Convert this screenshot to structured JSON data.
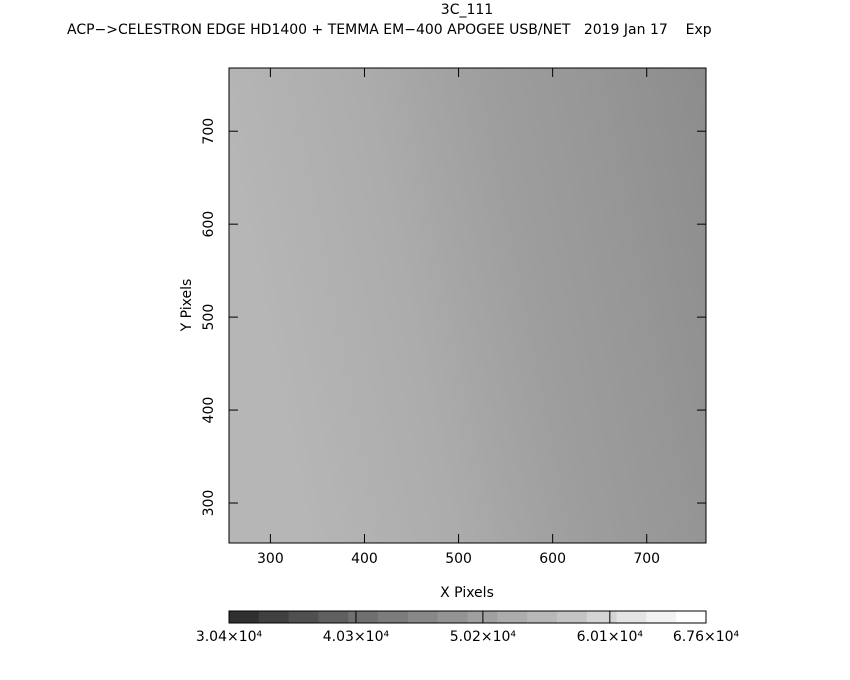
{
  "chart_data": {
    "type": "image",
    "title": "3C_111",
    "subtitle": "ACP−>CELESTRON EDGE HD1400 + TEMMA EM−400 APOGEE USB/NET   2019 Jan 17    Exp",
    "xlabel": "X Pixels",
    "ylabel": "Y Pixels",
    "xlim": [
      256,
      763
    ],
    "xticks": [
      300,
      400,
      500,
      600,
      700
    ],
    "ylim": [
      257,
      768
    ],
    "yticks": [
      300,
      400,
      500,
      600,
      700
    ],
    "colorbar": {
      "lim": [
        30400,
        67600
      ],
      "ticks": [
        {
          "value": 30400,
          "label": "3.04×10⁴"
        },
        {
          "value": 40300,
          "label": "4.03×10⁴"
        },
        {
          "value": 50200,
          "label": "5.02×10⁴"
        },
        {
          "value": 60100,
          "label": "6.01×10⁴"
        },
        {
          "value": 67600,
          "label": "6.76×10⁴"
        }
      ],
      "colors": [
        "#303030",
        "#404040",
        "#505050",
        "#606060",
        "#707070",
        "#7c7c7c",
        "#888888",
        "#949494",
        "#a0a0a0",
        "#acacac",
        "#b8b8b8",
        "#c4c4c4",
        "#d4d4d4",
        "#e4e4e4",
        "#f2f2f2",
        "#ffffff"
      ]
    }
  }
}
